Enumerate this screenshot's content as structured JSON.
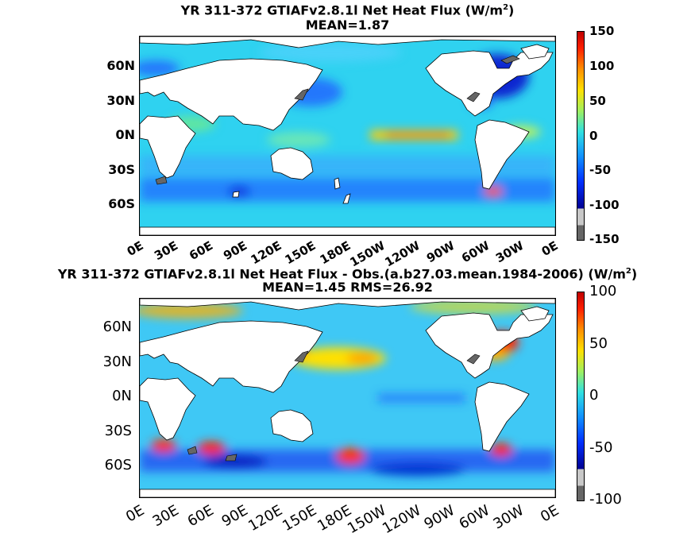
{
  "panel1": {
    "title_main": "YR 311-372 GTIAFv2.8.1l  Net Heat Flux (W/m",
    "title_sup": "2",
    "title_end": ")",
    "subtitle": "MEAN=1.87",
    "lat_labels": [
      "60N",
      "30N",
      "0N",
      "30S",
      "60S"
    ],
    "lon_labels": [
      "0E",
      "30E",
      "60E",
      "90E",
      "120E",
      "150E",
      "180E",
      "150W",
      "120W",
      "90W",
      "60W",
      "30W",
      "0E"
    ],
    "colorbar_ticks": [
      "150",
      "100",
      "50",
      "0",
      "-50",
      "-100",
      "-150"
    ]
  },
  "panel2": {
    "title_main": "YR 311-372 GTIAFv2.8.1l  Net Heat Flux - Obs.(a.b27.03.mean.1984-2006) (W/m",
    "title_sup": "2",
    "title_end": ")",
    "subtitle": "MEAN=1.45 RMS=26.92",
    "lat_labels": [
      "60N",
      "30N",
      "0N",
      "30S",
      "60S"
    ],
    "lon_labels": [
      "0E",
      "30E",
      "60E",
      "90E",
      "120E",
      "150E",
      "180E",
      "150W",
      "120W",
      "90W",
      "60W",
      "30W",
      "0E"
    ],
    "colorbar_ticks": [
      "100",
      "50",
      "0",
      "-50",
      "-100"
    ]
  },
  "colors": {
    "ocean_base": "#2fd2f0",
    "land": "#ffffff",
    "missing": "#666666"
  }
}
